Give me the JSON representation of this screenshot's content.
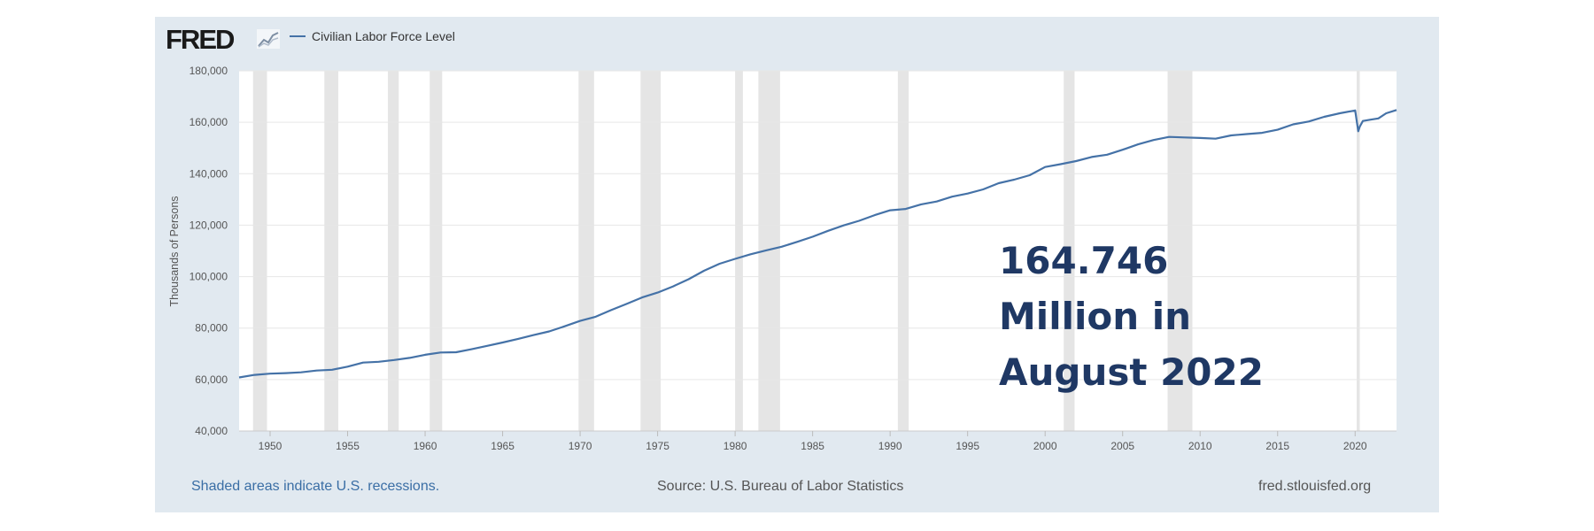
{
  "header": {
    "logo_text": "FRED",
    "logo_icon": "fred-graph-icon",
    "legend_label": "Civilian Labor Force Level"
  },
  "footer": {
    "recession_note": "Shaded areas indicate U.S. recessions.",
    "source": "Source: U.S. Bureau of Labor Statistics",
    "site": "fred.stlouisfed.org"
  },
  "annotation": {
    "line1": "164.746",
    "line2": "Million in",
    "line3": "August 2022",
    "color": "#1f3864"
  },
  "colors": {
    "series": "#4572a7",
    "recession_shade": "#e5e5e5",
    "panel_background": "#e1e9f0",
    "plot_background": "#ffffff"
  },
  "chart_data": {
    "type": "line",
    "ylabel": "Thousands of Persons",
    "xlabel": "",
    "xlim": [
      1948.0,
      2022.67
    ],
    "ylim": [
      40000,
      180000
    ],
    "x_ticks": [
      1950,
      1955,
      1960,
      1965,
      1970,
      1975,
      1980,
      1985,
      1990,
      1995,
      2000,
      2005,
      2010,
      2015,
      2020
    ],
    "y_ticks": [
      40000,
      60000,
      80000,
      100000,
      120000,
      140000,
      160000,
      180000
    ],
    "y_tick_labels": [
      "40,000",
      "60,000",
      "80,000",
      "100,000",
      "120,000",
      "140,000",
      "160,000",
      "180,000"
    ],
    "grid": true,
    "legend": "top-left",
    "recession_note": "Shaded areas indicate U.S. recessions.",
    "recessions": [
      [
        1948.9,
        1949.8
      ],
      [
        1953.5,
        1954.4
      ],
      [
        1957.6,
        1958.3
      ],
      [
        1960.3,
        1961.1
      ],
      [
        1969.9,
        1970.9
      ],
      [
        1973.9,
        1975.2
      ],
      [
        1980.0,
        1980.5
      ],
      [
        1981.5,
        1982.9
      ],
      [
        1990.5,
        1991.2
      ],
      [
        2001.2,
        2001.9
      ],
      [
        2007.9,
        2009.5
      ],
      [
        2020.1,
        2020.3
      ]
    ],
    "series": [
      {
        "name": "Civilian Labor Force Level",
        "x": [
          1948.0,
          1949.0,
          1950.0,
          1951.0,
          1952.0,
          1953.0,
          1954.0,
          1955.0,
          1956.0,
          1957.0,
          1958.0,
          1959.0,
          1960.0,
          1961.0,
          1962.0,
          1963.0,
          1964.0,
          1965.0,
          1966.0,
          1967.0,
          1968.0,
          1969.0,
          1970.0,
          1971.0,
          1972.0,
          1973.0,
          1974.0,
          1975.0,
          1976.0,
          1977.0,
          1978.0,
          1979.0,
          1980.0,
          1981.0,
          1982.0,
          1983.0,
          1984.0,
          1985.0,
          1986.0,
          1987.0,
          1988.0,
          1989.0,
          1990.0,
          1991.0,
          1992.0,
          1993.0,
          1994.0,
          1995.0,
          1996.0,
          1997.0,
          1998.0,
          1999.0,
          2000.0,
          2001.0,
          2002.0,
          2003.0,
          2004.0,
          2005.0,
          2006.0,
          2007.0,
          2008.0,
          2009.0,
          2010.0,
          2011.0,
          2012.0,
          2013.0,
          2014.0,
          2015.0,
          2016.0,
          2017.0,
          2018.0,
          2019.0,
          2020.0,
          2020.2,
          2020.3,
          2020.5,
          2021.0,
          2021.5,
          2022.0,
          2022.67
        ],
        "y": [
          60800,
          61800,
          62300,
          62500,
          62800,
          63500,
          63800,
          65000,
          66600,
          66900,
          67600,
          68400,
          69600,
          70500,
          70600,
          71800,
          73100,
          74400,
          75800,
          77300,
          78700,
          80700,
          82800,
          84400,
          87000,
          89400,
          91900,
          93800,
          96200,
          99000,
          102300,
          105000,
          106900,
          108700,
          110200,
          111600,
          113500,
          115500,
          117800,
          119900,
          121700,
          123900,
          125800,
          126300,
          128100,
          129200,
          131100,
          132300,
          133900,
          136300,
          137700,
          139400,
          142600,
          143700,
          144900,
          146500,
          147400,
          149300,
          151400,
          153100,
          154300,
          154100,
          153900,
          153600,
          154900,
          155400,
          155900,
          157100,
          159200,
          160300,
          162100,
          163500,
          164600,
          156500,
          158300,
          160500,
          161000,
          161500,
          163500,
          164746
        ]
      }
    ]
  }
}
